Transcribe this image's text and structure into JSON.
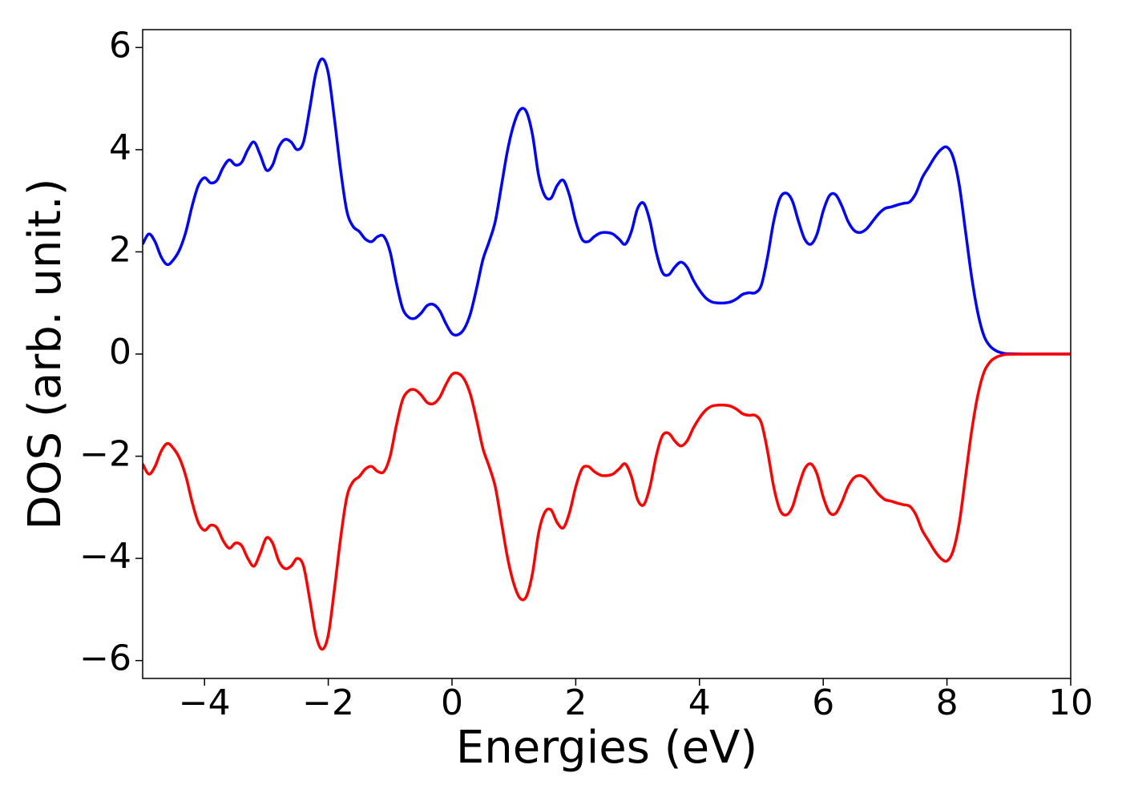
{
  "chart_data": {
    "type": "line",
    "x_label": "Energies (eV)",
    "y_label": "DOS (arb. unit.)",
    "x": [
      -5.0,
      -4.9,
      -4.8,
      -4.7,
      -4.6,
      -4.5,
      -4.4,
      -4.3,
      -4.2,
      -4.1,
      -4.0,
      -3.9,
      -3.8,
      -3.7,
      -3.6,
      -3.5,
      -3.4,
      -3.3,
      -3.2,
      -3.1,
      -3.0,
      -2.9,
      -2.8,
      -2.7,
      -2.6,
      -2.5,
      -2.4,
      -2.3,
      -2.2,
      -2.1,
      -2.0,
      -1.9,
      -1.8,
      -1.7,
      -1.6,
      -1.5,
      -1.4,
      -1.3,
      -1.2,
      -1.1,
      -1.0,
      -0.9,
      -0.8,
      -0.7,
      -0.6,
      -0.5,
      -0.4,
      -0.3,
      -0.2,
      -0.1,
      0.0,
      0.1,
      0.2,
      0.3,
      0.4,
      0.5,
      0.6,
      0.7,
      0.8,
      0.9,
      1.0,
      1.1,
      1.2,
      1.3,
      1.4,
      1.5,
      1.6,
      1.7,
      1.8,
      1.9,
      2.0,
      2.1,
      2.2,
      2.3,
      2.4,
      2.5,
      2.6,
      2.7,
      2.8,
      2.9,
      3.0,
      3.1,
      3.2,
      3.3,
      3.4,
      3.5,
      3.6,
      3.7,
      3.8,
      3.9,
      4.0,
      4.1,
      4.2,
      4.3,
      4.4,
      4.5,
      4.6,
      4.7,
      4.8,
      4.9,
      5.0,
      5.1,
      5.2,
      5.3,
      5.4,
      5.5,
      5.6,
      5.7,
      5.8,
      5.9,
      6.0,
      6.1,
      6.2,
      6.3,
      6.4,
      6.5,
      6.6,
      6.7,
      6.8,
      6.9,
      7.0,
      7.1,
      7.2,
      7.3,
      7.4,
      7.5,
      7.6,
      7.7,
      7.8,
      7.9,
      8.0,
      8.1,
      8.2,
      8.3,
      8.4,
      8.5,
      8.6,
      8.7,
      8.8,
      8.9,
      9.0,
      9.5,
      10
    ],
    "series": [
      {
        "color": "#0000ff",
        "values": [
          2.15,
          2.35,
          2.2,
          1.9,
          1.75,
          1.85,
          2.05,
          2.4,
          2.9,
          3.3,
          3.45,
          3.35,
          3.4,
          3.65,
          3.8,
          3.7,
          3.75,
          4.0,
          4.15,
          3.9,
          3.6,
          3.7,
          4.05,
          4.2,
          4.15,
          4.0,
          4.15,
          4.8,
          5.5,
          5.78,
          5.5,
          4.6,
          3.6,
          2.8,
          2.5,
          2.4,
          2.25,
          2.2,
          2.3,
          2.3,
          2.0,
          1.4,
          0.9,
          0.72,
          0.7,
          0.8,
          0.95,
          0.97,
          0.85,
          0.6,
          0.4,
          0.38,
          0.5,
          0.8,
          1.3,
          1.85,
          2.2,
          2.6,
          3.3,
          4.0,
          4.5,
          4.78,
          4.75,
          4.3,
          3.5,
          3.1,
          3.05,
          3.3,
          3.4,
          3.1,
          2.6,
          2.25,
          2.2,
          2.3,
          2.37,
          2.38,
          2.35,
          2.25,
          2.15,
          2.4,
          2.85,
          2.95,
          2.6,
          2.0,
          1.6,
          1.55,
          1.7,
          1.8,
          1.7,
          1.45,
          1.25,
          1.1,
          1.02,
          1.0,
          1.0,
          1.02,
          1.08,
          1.17,
          1.2,
          1.2,
          1.35,
          1.9,
          2.6,
          3.05,
          3.15,
          3.0,
          2.6,
          2.25,
          2.15,
          2.35,
          2.8,
          3.1,
          3.12,
          2.9,
          2.6,
          2.42,
          2.38,
          2.45,
          2.6,
          2.75,
          2.85,
          2.88,
          2.92,
          2.95,
          2.98,
          3.15,
          3.45,
          3.65,
          3.85,
          4.0,
          4.05,
          3.85,
          3.3,
          2.4,
          1.5,
          0.8,
          0.35,
          0.15,
          0.06,
          0.02,
          0.005,
          0,
          0
        ]
      },
      {
        "color": "#ff0000",
        "values": [
          -2.15,
          -2.35,
          -2.2,
          -1.9,
          -1.75,
          -1.85,
          -2.05,
          -2.4,
          -2.9,
          -3.3,
          -3.45,
          -3.35,
          -3.4,
          -3.65,
          -3.8,
          -3.7,
          -3.75,
          -4.0,
          -4.15,
          -3.9,
          -3.6,
          -3.7,
          -4.05,
          -4.2,
          -4.15,
          -4.0,
          -4.15,
          -4.8,
          -5.5,
          -5.78,
          -5.5,
          -4.6,
          -3.6,
          -2.8,
          -2.5,
          -2.4,
          -2.25,
          -2.2,
          -2.3,
          -2.3,
          -2.0,
          -1.4,
          -0.9,
          -0.72,
          -0.7,
          -0.8,
          -0.95,
          -0.97,
          -0.85,
          -0.6,
          -0.4,
          -0.38,
          -0.5,
          -0.8,
          -1.3,
          -1.85,
          -2.2,
          -2.6,
          -3.3,
          -4.0,
          -4.5,
          -4.78,
          -4.75,
          -4.3,
          -3.5,
          -3.1,
          -3.05,
          -3.3,
          -3.4,
          -3.1,
          -2.6,
          -2.25,
          -2.2,
          -2.3,
          -2.37,
          -2.38,
          -2.35,
          -2.25,
          -2.15,
          -2.4,
          -2.85,
          -2.95,
          -2.6,
          -2.0,
          -1.6,
          -1.55,
          -1.7,
          -1.8,
          -1.7,
          -1.45,
          -1.25,
          -1.1,
          -1.02,
          -1.0,
          -1.0,
          -1.02,
          -1.08,
          -1.17,
          -1.2,
          -1.2,
          -1.35,
          -1.9,
          -2.6,
          -3.05,
          -3.15,
          -3.0,
          -2.6,
          -2.25,
          -2.15,
          -2.35,
          -2.8,
          -3.1,
          -3.12,
          -2.9,
          -2.6,
          -2.42,
          -2.38,
          -2.45,
          -2.6,
          -2.75,
          -2.85,
          -2.88,
          -2.92,
          -2.95,
          -2.98,
          -3.15,
          -3.45,
          -3.65,
          -3.85,
          -4.0,
          -4.05,
          -3.85,
          -3.3,
          -2.4,
          -1.5,
          -0.8,
          -0.35,
          -0.15,
          -0.06,
          -0.02,
          -0.005,
          0,
          0
        ]
      }
    ],
    "xlim": [
      -5,
      10
    ],
    "xticks": [
      {
        "value": -4,
        "label": "−4"
      },
      {
        "value": -2,
        "label": "−2"
      },
      0,
      2,
      4,
      6,
      8,
      10
    ],
    "ylim": [
      -6.35,
      6.35
    ],
    "yticks": [
      {
        "value": -6,
        "label": "−6"
      },
      {
        "value": -4,
        "label": "−4"
      },
      {
        "value": -2,
        "label": "−2"
      },
      0,
      2,
      4,
      6
    ],
    "grid": false
  }
}
